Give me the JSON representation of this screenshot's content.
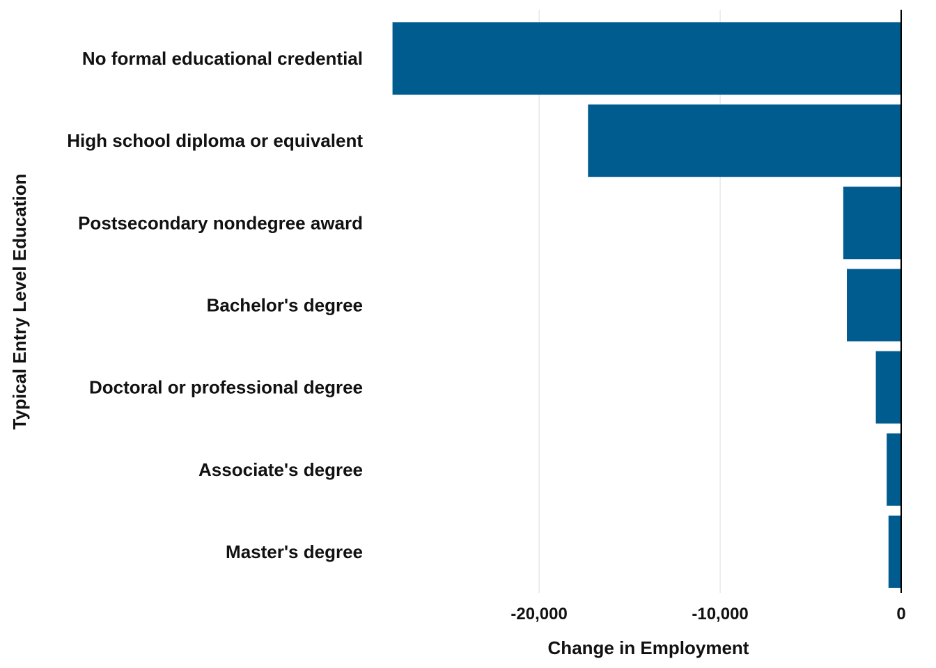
{
  "chart_data": {
    "type": "bar",
    "orientation": "horizontal",
    "title": "",
    "xlabel": "Change in Employment",
    "ylabel": "Typical Entry Level Education",
    "categories": [
      "No formal educational credential",
      "High school diploma or equivalent",
      "Postsecondary nondegree award",
      "Bachelor's degree",
      "Doctoral or professional degree",
      "Associate's degree",
      "Master's degree"
    ],
    "values": [
      -28100,
      -17300,
      -3200,
      -3000,
      -1400,
      -800,
      -700
    ],
    "xlim": [
      -28700,
      0
    ],
    "xticks": [
      -20000,
      -10000,
      0
    ],
    "xtick_labels": [
      "-20,000",
      "-10,000",
      "0"
    ],
    "grid": true,
    "bar_color": "#005b8e"
  }
}
